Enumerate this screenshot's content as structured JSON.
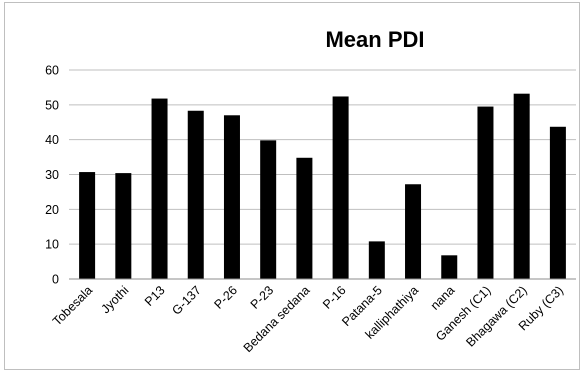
{
  "chart_data": {
    "type": "bar",
    "title": "Mean PDI",
    "xlabel": "",
    "ylabel": "",
    "categories": [
      "Tobesala",
      "Jyothi",
      "P13",
      "G-137",
      "P-26",
      "P-23",
      "Bedana sedana",
      "P-16",
      "Patana-5",
      "kalliphathiya",
      "nana",
      "Ganesh (C1)",
      "Bhagawa (C2)",
      "Ruby (C3)"
    ],
    "values": [
      30.7,
      30.4,
      51.8,
      48.3,
      47.0,
      39.8,
      34.8,
      52.4,
      10.8,
      27.2,
      6.8,
      49.5,
      53.2,
      43.7
    ],
    "ylim": [
      0,
      60
    ],
    "yticks": [
      0,
      10,
      20,
      30,
      40,
      50,
      60
    ],
    "grid": "horizontal",
    "legend": "none",
    "bar_color": "#000000",
    "grid_color": "#bfbfbf"
  }
}
